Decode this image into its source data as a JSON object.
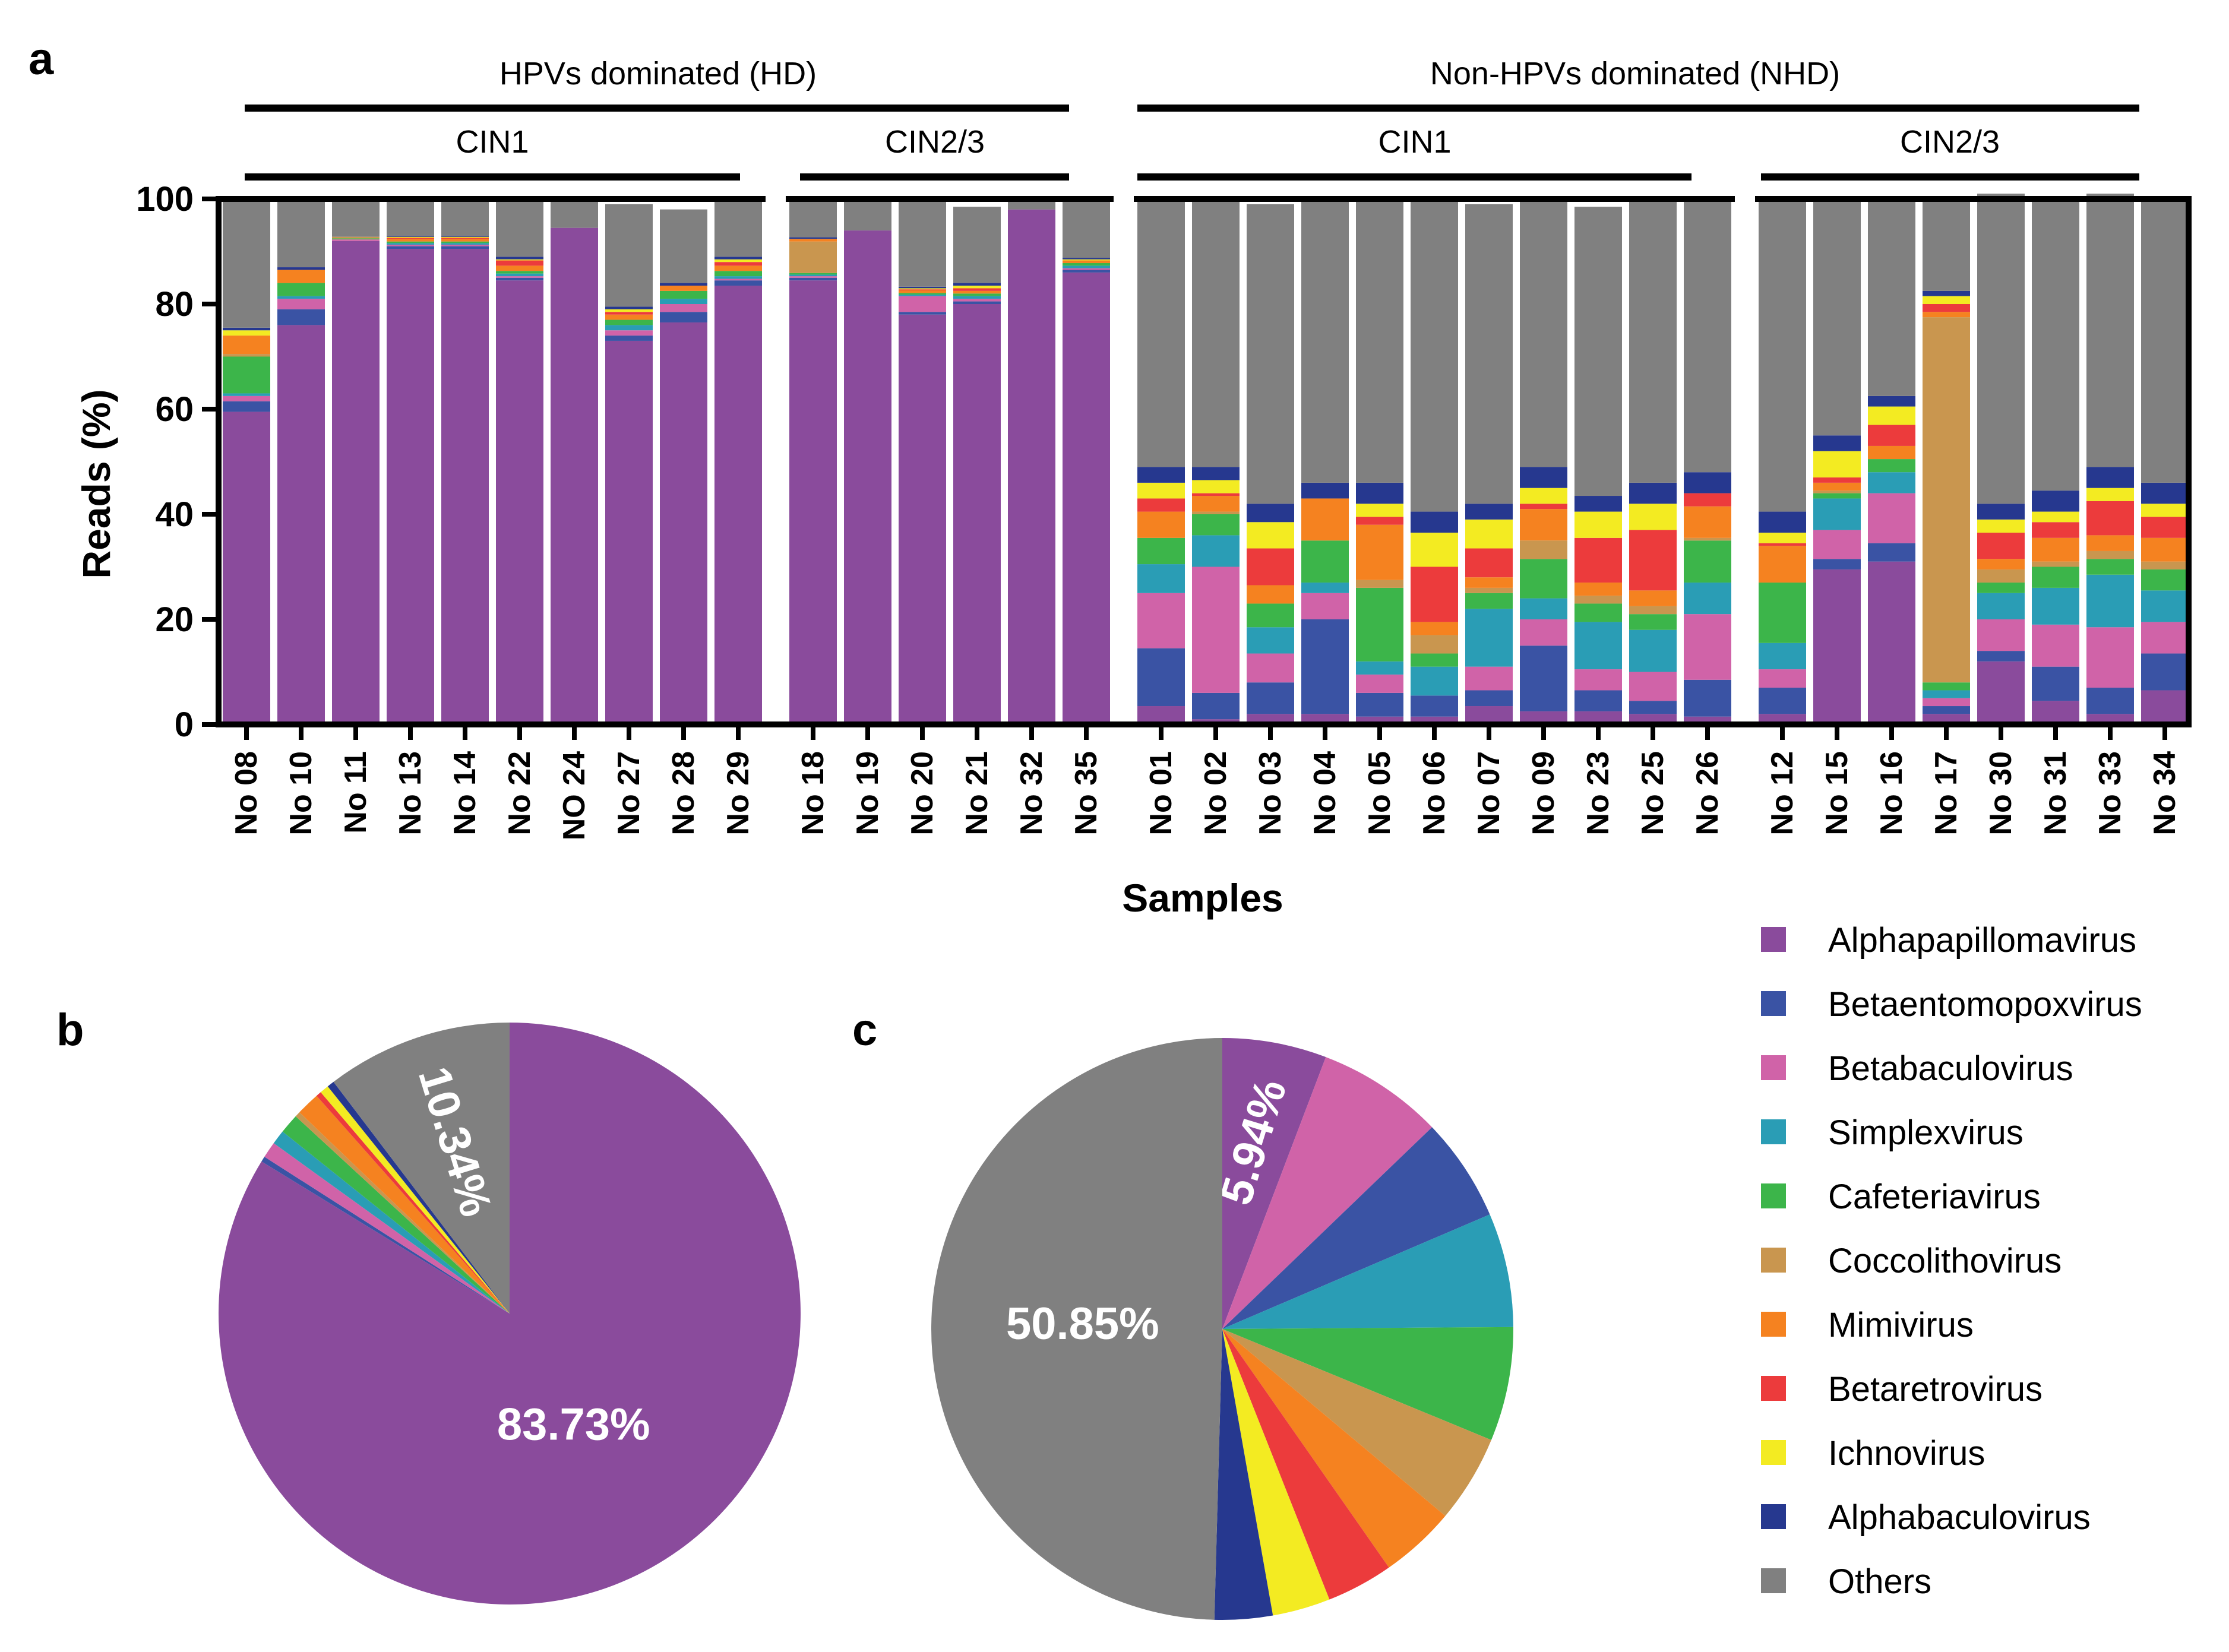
{
  "panels": {
    "a": "a",
    "b": "b",
    "c": "c"
  },
  "groups": {
    "hd": "HPVs dominated (HD)",
    "nhd": "Non-HPVs dominated (NHD)",
    "sub": {
      "hd_cin1": "CIN1",
      "hd_cin23": "CIN2/3",
      "nhd_cin1": "CIN1",
      "nhd_cin23": "CIN2/3"
    }
  },
  "legend": [
    {
      "name": "Alphapapillomavirus",
      "color": "#8a4b9c"
    },
    {
      "name": "Betaentomopoxvirus",
      "color": "#3a53a4"
    },
    {
      "name": "Betabaculovirus",
      "color": "#d063a8"
    },
    {
      "name": "Simplexvirus",
      "color": "#2a9db5"
    },
    {
      "name": "Cafeteriavirus",
      "color": "#3cb54a"
    },
    {
      "name": "Coccolithovirus",
      "color": "#c9964f"
    },
    {
      "name": "Mimivirus",
      "color": "#f58220"
    },
    {
      "name": "Betaretrovirus",
      "color": "#ec3b3c"
    },
    {
      "name": "Ichnovirus",
      "color": "#f3eb22"
    },
    {
      "name": "Alphabaculovirus",
      "color": "#26388f"
    },
    {
      "name": "Others",
      "color": "#808080"
    }
  ],
  "chart_data": [
    {
      "type": "bar",
      "stacked": true,
      "title": "",
      "xlabel": "Samples",
      "ylabel": "Reads (%)",
      "ylim": [
        0,
        100
      ],
      "yticks": [
        "0",
        "20",
        "40",
        "60",
        "80",
        "100"
      ],
      "categories": [
        "No 08",
        "No 10",
        "No 11",
        "No 13",
        "No 14",
        "No 22",
        "NO 24",
        "No 27",
        "No 28",
        "No 29",
        "No 18",
        "No 19",
        "No 20",
        "No 21",
        "No 32",
        "No 35",
        "No 01",
        "No 02",
        "No 03",
        "No 04",
        "No 05",
        "No 06",
        "No 07",
        "No 09",
        "No 23",
        "No 25",
        "No 26",
        "No 12",
        "No 15",
        "No 16",
        "No 17",
        "No 30",
        "No 31",
        "No 33",
        "No 34"
      ],
      "series": [
        {
          "name": "Alphapapillomavirus",
          "values": [
            59.5,
            76,
            92,
            90.5,
            90.5,
            84.5,
            94.5,
            73,
            76.5,
            83.5,
            84.5,
            94,
            78,
            80,
            98,
            86,
            3.5,
            1,
            2,
            2,
            1.5,
            1.5,
            3.5,
            2.5,
            2.5,
            2,
            1.5,
            2,
            29.5,
            31,
            2,
            12,
            4.5,
            2,
            6.5
          ]
        },
        {
          "name": "Betaentomopoxvirus",
          "values": [
            2,
            3,
            0,
            0.5,
            0.5,
            0.5,
            0,
            1,
            2,
            1,
            0.5,
            0,
            0.5,
            0.5,
            0,
            0.5,
            11,
            5,
            6,
            18,
            4.5,
            4,
            3,
            12.5,
            4,
            2.5,
            7,
            5,
            2,
            3.5,
            1.5,
            2,
            6.5,
            5,
            7
          ]
        },
        {
          "name": "Betabaculovirus",
          "values": [
            1,
            2,
            0.3,
            0.3,
            0.3,
            0.3,
            0,
            1,
            1.5,
            0.3,
            0.3,
            0,
            3,
            0.5,
            0,
            0.3,
            10.5,
            24,
            5.5,
            5,
            3.5,
            0,
            4.5,
            5,
            4,
            5.5,
            12.5,
            3.5,
            5.5,
            9.5,
            1.5,
            6,
            8,
            11.5,
            6
          ]
        },
        {
          "name": "Simplexvirus",
          "values": [
            0.5,
            0.5,
            0,
            0.3,
            0.3,
            0.5,
            0,
            1,
            1,
            0.5,
            0.3,
            0,
            0.3,
            0.5,
            0,
            0.5,
            5.5,
            6,
            5,
            2,
            2.5,
            5.5,
            11,
            4,
            9,
            8,
            6,
            5,
            6,
            4,
            1.5,
            5,
            7,
            10,
            6
          ]
        },
        {
          "name": "Cafeteriavirus",
          "values": [
            7,
            2.5,
            0.2,
            0.3,
            0.3,
            0.5,
            0,
            1,
            1.5,
            1,
            0.3,
            0,
            0.3,
            0.5,
            0,
            0.5,
            5,
            4,
            4.5,
            8,
            14,
            2.5,
            3,
            7.5,
            3.5,
            3,
            8,
            11.5,
            1,
            2.5,
            1.5,
            2,
            4,
            3,
            4
          ]
        },
        {
          "name": "Coccolithovirus",
          "values": [
            0.5,
            0,
            0.3,
            0,
            0,
            0,
            0,
            0,
            0,
            0,
            6,
            0,
            0,
            0,
            0,
            0,
            0,
            0.5,
            0,
            0,
            1.5,
            3.5,
            1,
            3.5,
            1.5,
            1.5,
            0.5,
            0,
            0.5,
            0,
            69.5,
            2.5,
            1,
            1.5,
            1.5
          ]
        },
        {
          "name": "Mimivirus",
          "values": [
            3.5,
            2.5,
            0,
            0.5,
            0.5,
            1,
            0,
            1,
            1,
            1,
            0.5,
            0,
            0.5,
            0.5,
            0,
            0.5,
            5,
            3,
            3.5,
            8,
            10.5,
            2.5,
            2,
            6,
            2.5,
            3,
            6,
            7,
            1.5,
            2.5,
            1,
            2,
            4.5,
            3,
            4.5
          ]
        },
        {
          "name": "Betaretrovirus",
          "values": [
            0,
            0,
            0,
            0.2,
            0.2,
            1,
            0,
            0.5,
            0,
            0.7,
            0,
            0,
            0.2,
            0.5,
            0,
            0,
            2.5,
            0.5,
            7,
            0,
            1.5,
            10.5,
            5.5,
            1,
            8.5,
            11.5,
            2.5,
            0.5,
            1,
            4,
            1.5,
            5,
            3,
            6.5,
            4
          ]
        },
        {
          "name": "Ichnovirus",
          "values": [
            1,
            0,
            0,
            0.2,
            0.2,
            0.2,
            0,
            0.5,
            0,
            0.5,
            0,
            0,
            0.2,
            0.5,
            0,
            0.2,
            3,
            2.5,
            5,
            0,
            2.5,
            6.5,
            5.5,
            3,
            5,
            5,
            0,
            2,
            5,
            3.5,
            1.5,
            2.5,
            2,
            2.5,
            2.5
          ]
        },
        {
          "name": "Alphabaculovirus",
          "values": [
            0.5,
            0.5,
            0,
            0.2,
            0.2,
            0.5,
            0,
            0.5,
            0.5,
            0.5,
            0.3,
            0,
            0.3,
            0.5,
            0,
            0.3,
            3,
            2.5,
            3.5,
            3,
            4,
            4,
            3,
            4,
            3,
            4,
            4,
            4,
            3,
            2,
            1,
            3,
            4,
            4,
            4
          ]
        },
        {
          "name": "Others",
          "values": [
            24.5,
            13,
            7.2,
            7,
            7,
            11,
            5.5,
            19.5,
            14,
            11,
            7.3,
            6,
            16.5,
            14.5,
            2,
            11.2,
            51,
            51,
            57,
            54,
            54,
            60,
            57,
            51,
            55,
            54,
            52,
            59,
            45,
            38,
            17,
            59,
            55,
            52,
            54.5
          ]
        }
      ]
    },
    {
      "type": "pie",
      "panel": "b",
      "labels": [
        "Alphapapillomavirus",
        "Betaentomopoxvirus",
        "Betabaculovirus",
        "Simplexvirus",
        "Cafeteriavirus",
        "Coccolithovirus",
        "Mimivirus",
        "Betaretrovirus",
        "Ichnovirus",
        "Alphabaculovirus",
        "Others"
      ],
      "values": [
        83.73,
        0.3,
        0.9,
        0.8,
        1.1,
        0.3,
        1.3,
        0.3,
        0.5,
        0.4,
        10.34
      ],
      "slice_labels": {
        "Alphapapillomavirus": "83.73%",
        "Others": "10.34%"
      }
    },
    {
      "type": "pie",
      "panel": "c",
      "labels": [
        "Alphapapillomavirus",
        "Betabaculovirus",
        "Betaentomopoxvirus",
        "Simplexvirus",
        "Cafeteriavirus",
        "Coccolithovirus",
        "Mimivirus",
        "Betaretrovirus",
        "Ichnovirus",
        "Alphabaculovirus",
        "Others"
      ],
      "values": [
        5.94,
        7.2,
        5.9,
        6.5,
        6.5,
        5.0,
        4.3,
        3.8,
        3.3,
        3.3,
        50.85
      ],
      "slice_labels": {
        "Alphapapillomavirus": "5.94%",
        "Others": "50.85%"
      }
    }
  ]
}
